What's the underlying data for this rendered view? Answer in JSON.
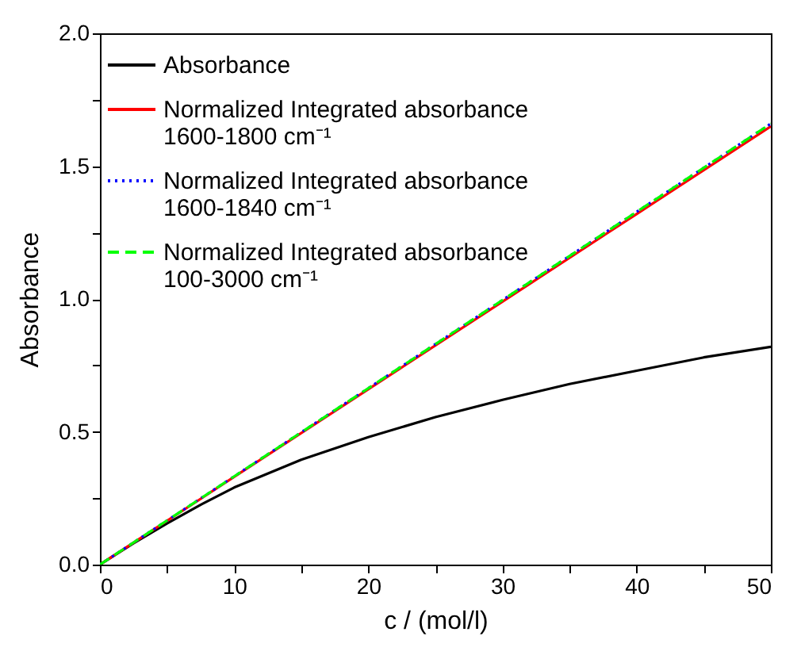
{
  "chart_data": {
    "type": "line",
    "xlabel": "c / (mol/l)",
    "ylabel": "Absorbance",
    "xlim": [
      0,
      50
    ],
    "ylim": [
      0,
      2.0
    ],
    "xticks": [
      0,
      {
        "value": 5,
        "label": null
      },
      10,
      {
        "value": 15,
        "label": null
      },
      20,
      {
        "value": 25,
        "label": null
      },
      30,
      {
        "value": 35,
        "label": null
      },
      40,
      {
        "value": 45,
        "label": null
      },
      {
        "value": 50,
        "label": "50"
      }
    ],
    "yticks": [
      {
        "value": 0,
        "label": "0.0"
      },
      {
        "value": 0.25,
        "label": null
      },
      {
        "value": 0.5,
        "label": "0.5"
      },
      {
        "value": 0.75,
        "label": null
      },
      {
        "value": 1,
        "label": "1.0"
      },
      {
        "value": 1.25,
        "label": null
      },
      {
        "value": 1.5,
        "label": "1.5"
      },
      {
        "value": 1.75,
        "label": null
      },
      {
        "value": 2,
        "label": "2.0"
      }
    ],
    "grid": false,
    "legend": "top left",
    "marker": "none",
    "series": [
      {
        "name": "Absorbance",
        "color": "#000000",
        "line_style": "solid",
        "x": [
          0,
          2.5,
          5,
          7.5,
          10,
          15,
          20,
          25,
          30,
          35,
          40,
          45,
          50
        ],
        "values": [
          0,
          0.08,
          0.155,
          0.225,
          0.29,
          0.395,
          0.48,
          0.555,
          0.62,
          0.68,
          0.73,
          0.78,
          0.82
        ]
      },
      {
        "name": "Normalized Integrated absorbance\n1600-1800 cm⁻¹",
        "color": "#ff0000",
        "line_style": "solid",
        "x": [
          0,
          10,
          20,
          30,
          40,
          50
        ],
        "values": [
          0,
          0.33,
          0.66,
          0.99,
          1.32,
          1.65
        ]
      },
      {
        "name": "Normalized Integrated absorbance\n1600-1840 cm⁻¹",
        "color": "#0000ff",
        "line_style": "dotted",
        "x": [
          0,
          10,
          20,
          30,
          40,
          50
        ],
        "values": [
          0,
          0.332,
          0.664,
          0.996,
          1.328,
          1.66
        ]
      },
      {
        "name": "Normalized Integrated absorbance\n100-3000 cm⁻¹",
        "color": "#00ff00",
        "line_style": "dashed",
        "x": [
          0,
          10,
          20,
          30,
          40,
          50
        ],
        "values": [
          0,
          0.332,
          0.664,
          0.996,
          1.328,
          1.66
        ]
      }
    ]
  }
}
